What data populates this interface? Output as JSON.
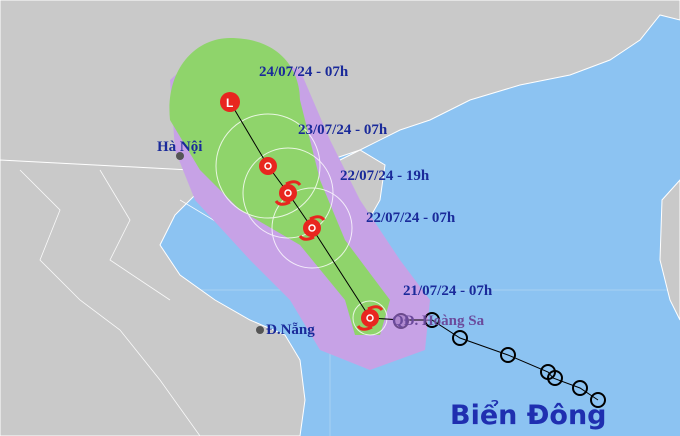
{
  "map": {
    "region_title": "Biển Đông",
    "cities": [
      {
        "name": "Hà Nội"
      },
      {
        "name": "Đ.Nẵng"
      },
      {
        "name": "QĐ. Hoàng Sa"
      }
    ],
    "forecast_labels": [
      "24/07/24 - 07h",
      "23/07/24 - 07h",
      "22/07/24 - 19h",
      "22/07/24 - 07h",
      "21/07/24 - 07h"
    ],
    "colors": {
      "sea": "#8cc3f2",
      "land": "#c9c9c9",
      "risk_zone": "#c7a2e6",
      "wind_zone": "#8fd46b",
      "storm_symbol": "#e8261f",
      "label_text": "#1a2a9a"
    },
    "icons": [
      "storm-icon",
      "low-pressure-icon",
      "past-position-icon"
    ]
  }
}
